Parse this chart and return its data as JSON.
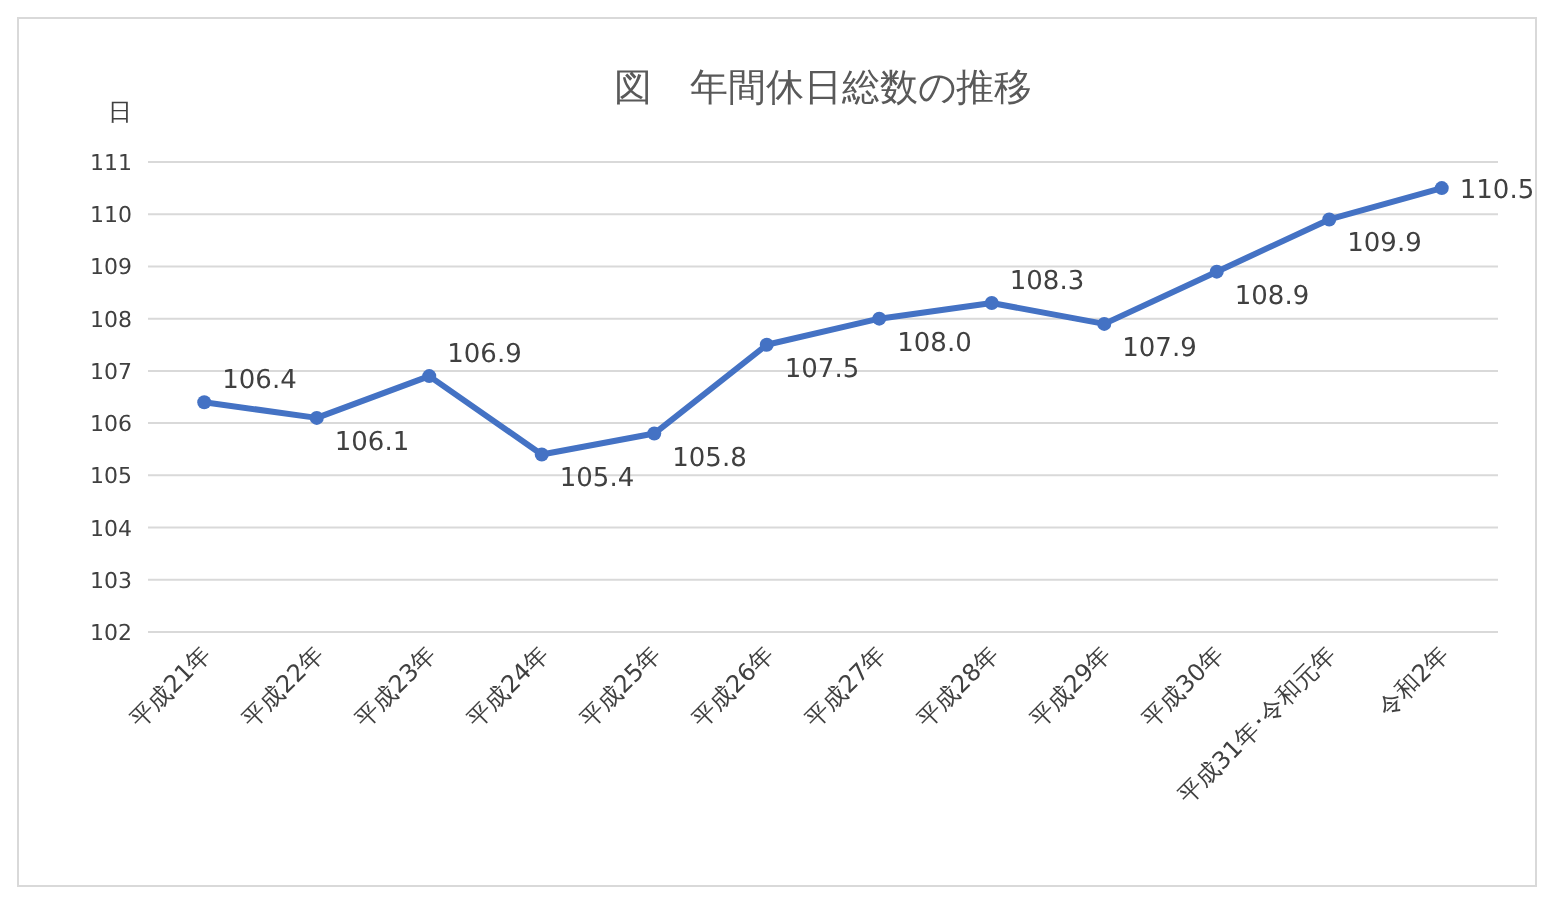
{
  "chart_data": {
    "type": "line",
    "title": "図　年間休日総数の推移",
    "ylabel": "日",
    "categories": [
      "平成21年",
      "平成22年",
      "平成23年",
      "平成24年",
      "平成25年",
      "平成26年",
      "平成27年",
      "平成28年",
      "平成29年",
      "平成30年",
      "平成31年･令和元年",
      "令和2年"
    ],
    "series": [
      {
        "color": "#4472c4",
        "values": [
          106.4,
          106.1,
          106.9,
          105.4,
          105.8,
          107.5,
          108.0,
          108.3,
          107.9,
          108.9,
          109.9,
          110.5
        ],
        "value_labels": [
          "106.4",
          "106.1",
          "106.9",
          "105.4",
          "105.8",
          "107.5",
          "108.0",
          "108.3",
          "107.9",
          "108.9",
          "109.9",
          "110.5"
        ]
      }
    ],
    "ylim": [
      102,
      111
    ],
    "yticks": [
      102,
      103,
      104,
      105,
      106,
      107,
      108,
      109,
      110,
      111
    ],
    "grid": "y",
    "marker": "circle",
    "line_style": "solid"
  }
}
